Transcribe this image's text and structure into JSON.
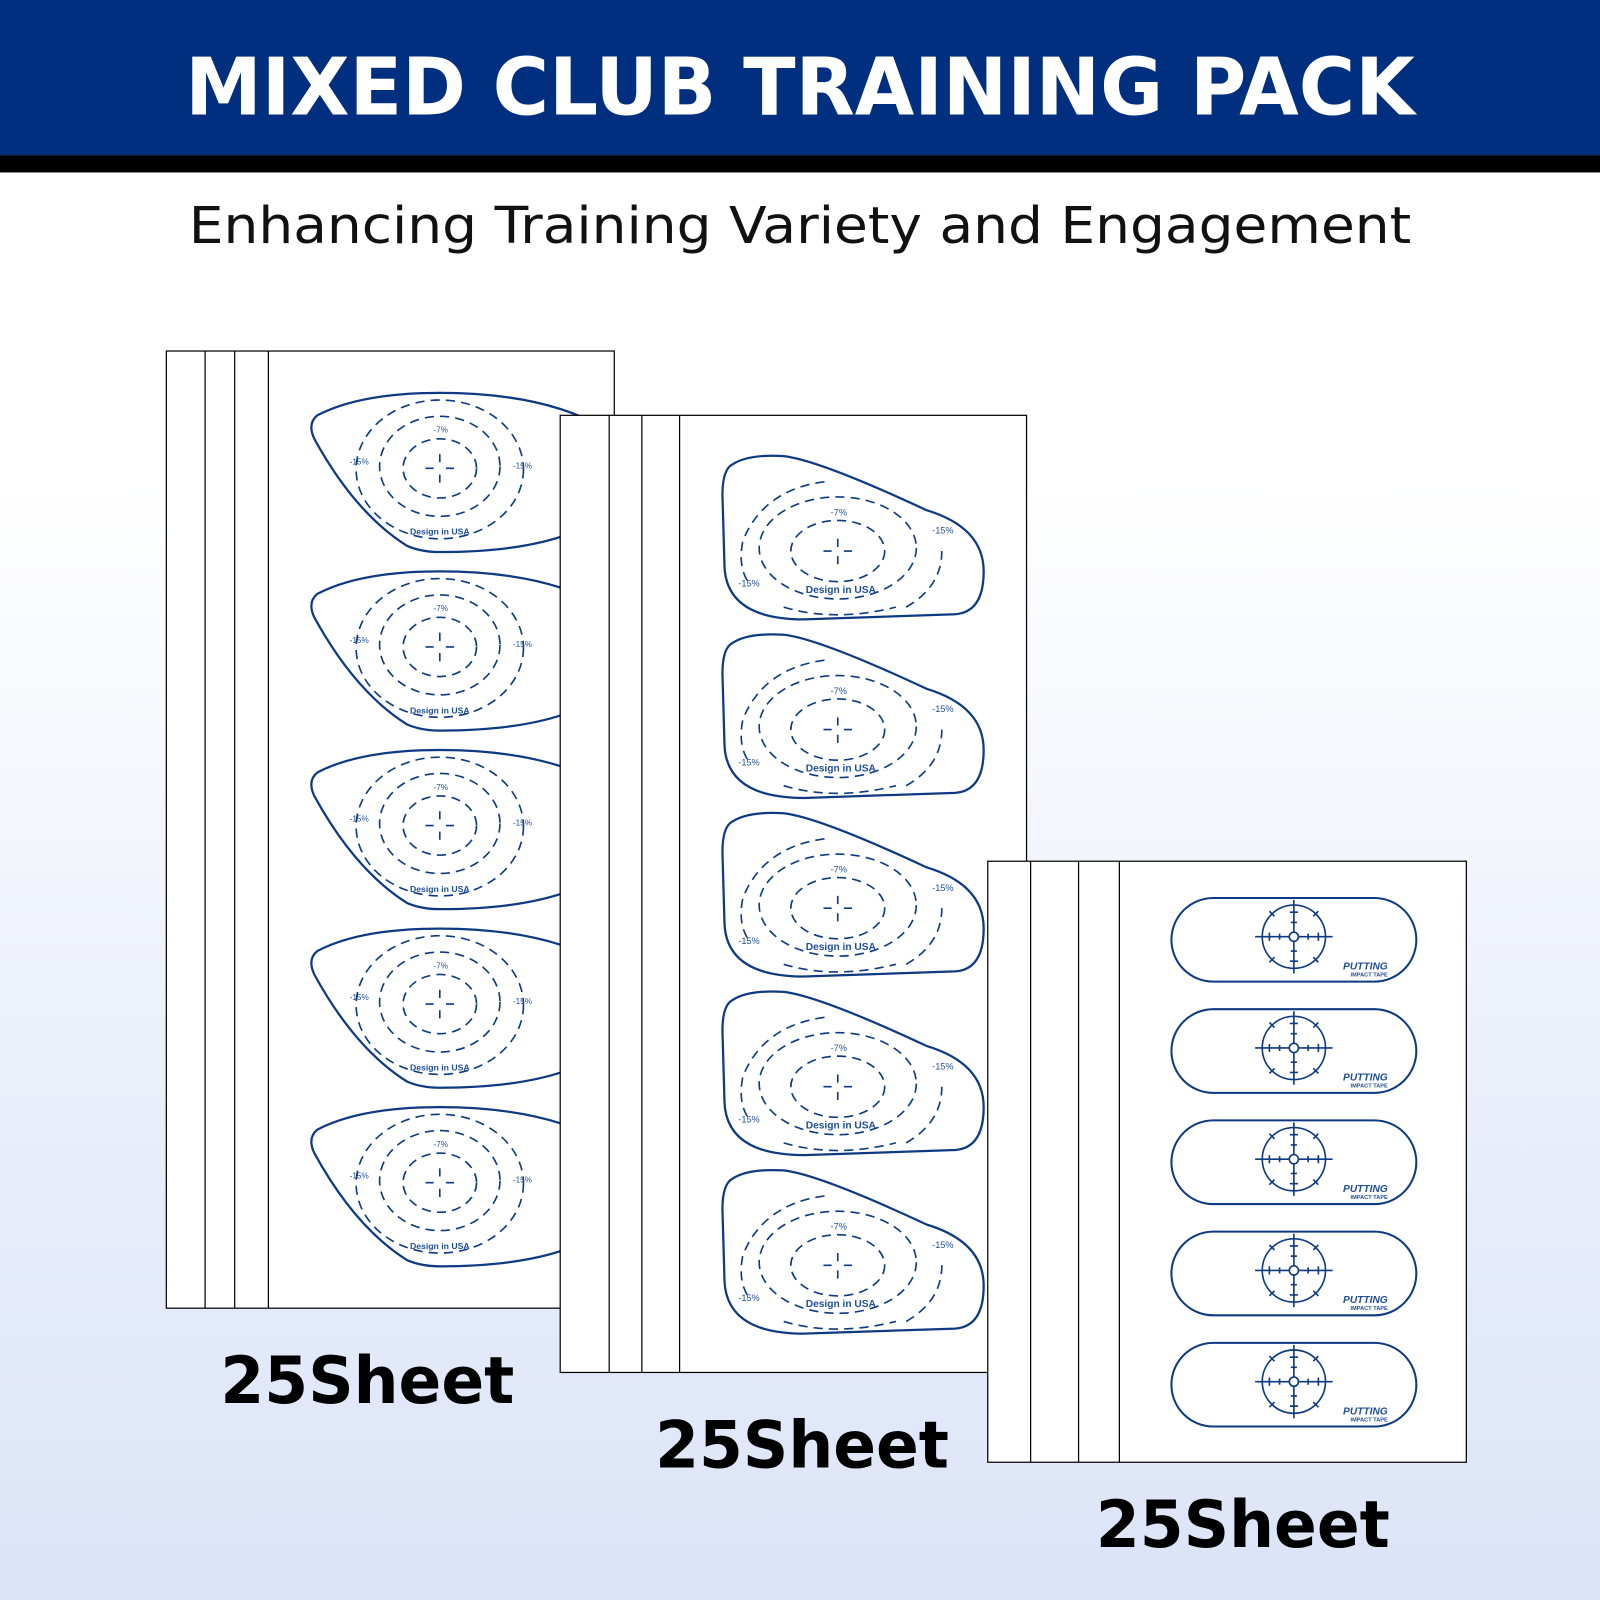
{
  "header": {
    "title": "MIXED CLUB TRAINING PACK",
    "subtitle": "Enhancing Training Variety and Engagement"
  },
  "colors": {
    "header_band": "#002f7f",
    "header_rule": "#000000",
    "sticker_outline": "#0d3a82",
    "sticker_text": "#1f4d9a"
  },
  "sheets": [
    {
      "type": "driver",
      "label": "25Sheet",
      "sticker_count": 5,
      "sticker_text": {
        "center": "-7%",
        "left": "-15%",
        "right": "-15%",
        "bottom": "Design in USA"
      }
    },
    {
      "type": "iron",
      "label": "25Sheet",
      "sticker_count": 5,
      "sticker_text": {
        "center": "-7%",
        "left": "-15%",
        "right": "-15%",
        "bottom": "Design in USA"
      }
    },
    {
      "type": "putter",
      "label": "25Sheet",
      "sticker_count": 5,
      "sticker_text": {
        "brand": "PUTTING",
        "sub": "IMPACT TAPE"
      }
    }
  ]
}
